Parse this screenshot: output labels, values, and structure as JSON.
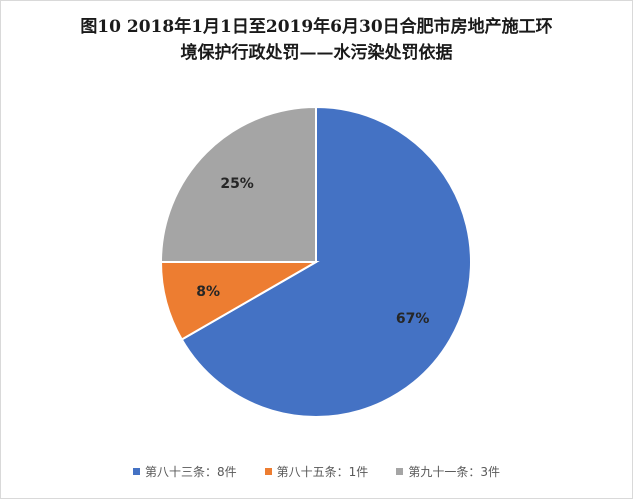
{
  "chart_data": {
    "type": "pie",
    "title_lines": [
      "图10   2018年1月1日至2019年6月30日合肥市房地产施工环",
      "境保护行政处罚——水污染处罚依据"
    ],
    "slices": [
      {
        "name": "第八十三条：8件",
        "value": 8,
        "label": "67%",
        "color": "#4472C4"
      },
      {
        "name": "第八十五条：1件",
        "value": 1,
        "label": "8%",
        "color": "#ED7D31"
      },
      {
        "name": "第九十一条：3件",
        "value": 3,
        "label": "25%",
        "color": "#A5A5A5"
      }
    ],
    "legend_position": "bottom"
  }
}
